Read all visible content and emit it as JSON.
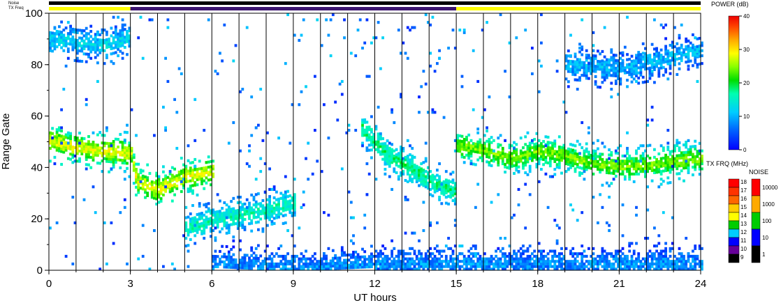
{
  "chart_data": {
    "type": "heatmap",
    "title": "",
    "xlabel": "UT hours",
    "ylabel": "Range Gate",
    "xlim": [
      0,
      24
    ],
    "ylim": [
      0,
      100
    ],
    "xticks": [
      0,
      3,
      6,
      9,
      12,
      15,
      18,
      21,
      24
    ],
    "yticks": [
      0,
      20,
      40,
      60,
      80,
      100
    ],
    "grid": "vertical lines every hour",
    "header_bars": {
      "noise_label": "Noise",
      "txfreq_label": "TX Freq",
      "segments": [
        {
          "start": 0,
          "end": 3,
          "color": "#ffff00"
        },
        {
          "start": 3,
          "end": 15,
          "color": "#3c1470"
        },
        {
          "start": 15,
          "end": 24,
          "color": "#ffff00"
        }
      ]
    },
    "echo_bands": [
      {
        "name": "",
        "points": [
          [
            0,
            50
          ],
          [
            1,
            47
          ],
          [
            2,
            46
          ],
          [
            3,
            45
          ],
          [
            3.2,
            34
          ],
          [
            4,
            31
          ],
          [
            5,
            36
          ],
          [
            6,
            38
          ]
        ],
        "power_db": 28
      },
      {
        "name": "",
        "points": [
          [
            0,
            90
          ],
          [
            1,
            88
          ],
          [
            2,
            87
          ],
          [
            3,
            90
          ]
        ],
        "power_db": 12
      },
      {
        "name": "",
        "points": [
          [
            5,
            16
          ],
          [
            6,
            19
          ],
          [
            7,
            21
          ],
          [
            8,
            23
          ],
          [
            9,
            26
          ]
        ],
        "power_db": 16
      },
      {
        "name": "",
        "points": [
          [
            11.5,
            55
          ],
          [
            12.5,
            44
          ],
          [
            13.5,
            38
          ],
          [
            14.5,
            32
          ],
          [
            15,
            30
          ]
        ],
        "power_db": 18
      },
      {
        "name": "",
        "points": [
          [
            15,
            48
          ],
          [
            16,
            46
          ],
          [
            17,
            43
          ],
          [
            18,
            46
          ],
          [
            19,
            44
          ],
          [
            20,
            41
          ],
          [
            21,
            40
          ],
          [
            22,
            40
          ],
          [
            23,
            42
          ],
          [
            24,
            43
          ]
        ],
        "power_db": 24
      },
      {
        "name": "",
        "points": [
          [
            19,
            80
          ],
          [
            21,
            78
          ],
          [
            22,
            80
          ],
          [
            24,
            85
          ]
        ],
        "power_db": 10
      },
      {
        "name": "",
        "points": [
          [
            6,
            2
          ],
          [
            8,
            1
          ],
          [
            10,
            1
          ],
          [
            12,
            2
          ],
          [
            15,
            2
          ],
          [
            18,
            2
          ],
          [
            21,
            2
          ],
          [
            24,
            2
          ]
        ],
        "power_db": 8
      }
    ],
    "scatter_density": 0.05,
    "colorbars": {
      "power": {
        "title": "POWER (dB)",
        "ticks": [
          "40",
          "30",
          "20",
          "10",
          "0"
        ],
        "range": [
          0,
          40
        ]
      },
      "txfreq": {
        "title": "TX FRQ (MHz)",
        "levels": [
          "18",
          "17",
          "16",
          "15",
          "14",
          "13",
          "12",
          "11",
          "10",
          "9"
        ],
        "colors": [
          "#ff0000",
          "#ff3300",
          "#ff6600",
          "#ffcc00",
          "#ffff00",
          "#00cc00",
          "#00ccff",
          "#0000ff",
          "#660099",
          "#000000"
        ]
      },
      "noise": {
        "title": "NOISE",
        "levels": [
          "10000",
          "1000",
          "100",
          "10",
          "1"
        ],
        "colors": [
          "#ff0000",
          "#ffaa00",
          "#00cc00",
          "#0000ff",
          "#000000"
        ]
      }
    }
  }
}
